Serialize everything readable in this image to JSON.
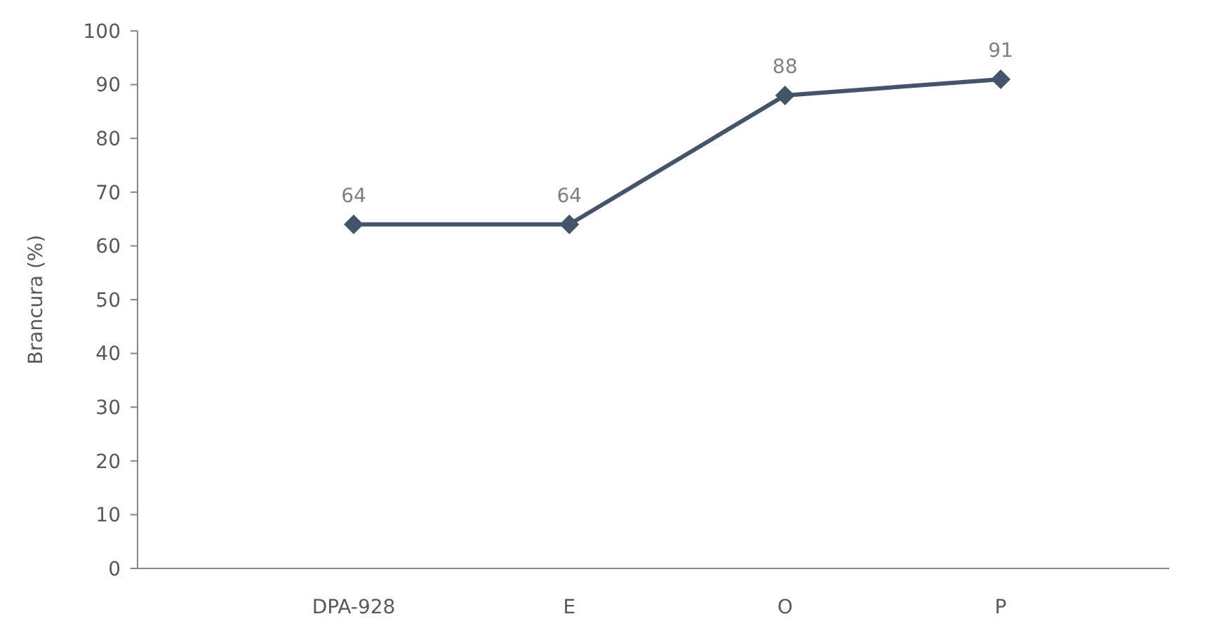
{
  "chart_data": {
    "type": "line",
    "ylabel": "Brancura (%)",
    "categories": [
      "DPA-928",
      "E",
      "O",
      "P"
    ],
    "series": [
      {
        "color": "#44546a",
        "values": [
          64,
          64,
          88,
          91
        ]
      }
    ],
    "ylim": [
      0,
      100
    ],
    "yticks": [
      0,
      10,
      20,
      30,
      40,
      50,
      60,
      70,
      80,
      90,
      100
    ],
    "grid": false,
    "marker": "diamond",
    "line_style": "solid",
    "data_labels": true
  }
}
